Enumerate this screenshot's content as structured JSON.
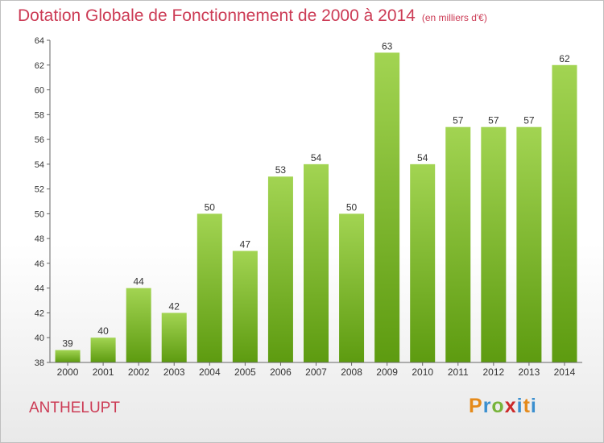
{
  "title": "Dotation Globale de Fonctionnement de 2000 à 2014",
  "unit_note": "(en milliers d'€)",
  "commune": "ANTHELUPT",
  "logo": {
    "p": "P",
    "r": "r",
    "o": "o",
    "x": "x",
    "i": "i",
    "t": "t",
    "i2": "i"
  },
  "colors": {
    "bar_top": "#a2d452",
    "bar_bottom": "#5d9b10",
    "title": "#cc3b55"
  },
  "chart_data": {
    "type": "bar",
    "categories": [
      "2000",
      "2001",
      "2002",
      "2003",
      "2004",
      "2005",
      "2006",
      "2007",
      "2008",
      "2009",
      "2010",
      "2011",
      "2012",
      "2013",
      "2014"
    ],
    "values": [
      39,
      40,
      44,
      42,
      50,
      47,
      53,
      54,
      50,
      63,
      54,
      57,
      57,
      57,
      62
    ],
    "ylim": [
      38,
      64
    ],
    "yticks": [
      38,
      40,
      42,
      44,
      46,
      48,
      50,
      52,
      54,
      56,
      58,
      60,
      62,
      64
    ],
    "grid": false,
    "data_labels": true
  }
}
